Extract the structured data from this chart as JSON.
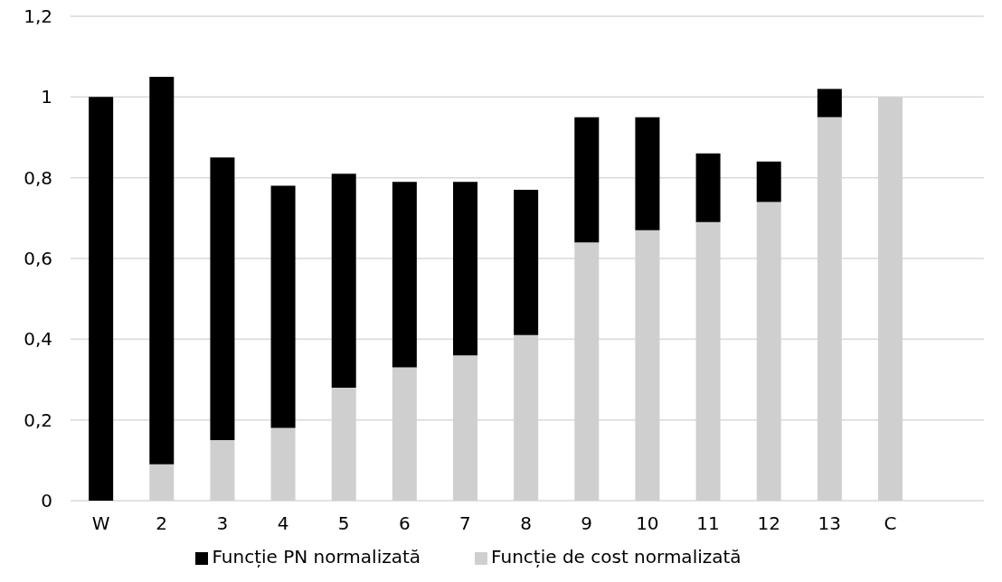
{
  "chart_data": {
    "type": "bar",
    "stacked": true,
    "categories": [
      "W",
      "2",
      "3",
      "4",
      "5",
      "6",
      "7",
      "8",
      "9",
      "10",
      "11",
      "12",
      "13",
      "C"
    ],
    "series": [
      {
        "name": "Funcție de cost normalizată",
        "color": "#d0cfd0",
        "values": [
          0,
          0.09,
          0.15,
          0.18,
          0.28,
          0.33,
          0.36,
          0.41,
          0.64,
          0.67,
          0.69,
          0.74,
          0.95,
          1
        ]
      },
      {
        "name": "Funcție PN normalizată",
        "color": "#000000",
        "values": [
          1,
          0.96,
          0.7,
          0.6,
          0.53,
          0.46,
          0.43,
          0.36,
          0.31,
          0.28,
          0.17,
          0.1,
          0.07,
          0
        ]
      }
    ],
    "ylim": [
      0,
      1.2
    ],
    "yticks": [
      {
        "value": 0,
        "label": "0"
      },
      {
        "value": 0.2,
        "label": "0,2"
      },
      {
        "value": 0.4,
        "label": "0,4"
      },
      {
        "value": 0.6,
        "label": "0,6"
      },
      {
        "value": 0.8,
        "label": "0,8"
      },
      {
        "value": 1,
        "label": "1"
      },
      {
        "value": 1.2,
        "label": "1,2"
      }
    ],
    "grid": "y",
    "legend": "bottom"
  }
}
